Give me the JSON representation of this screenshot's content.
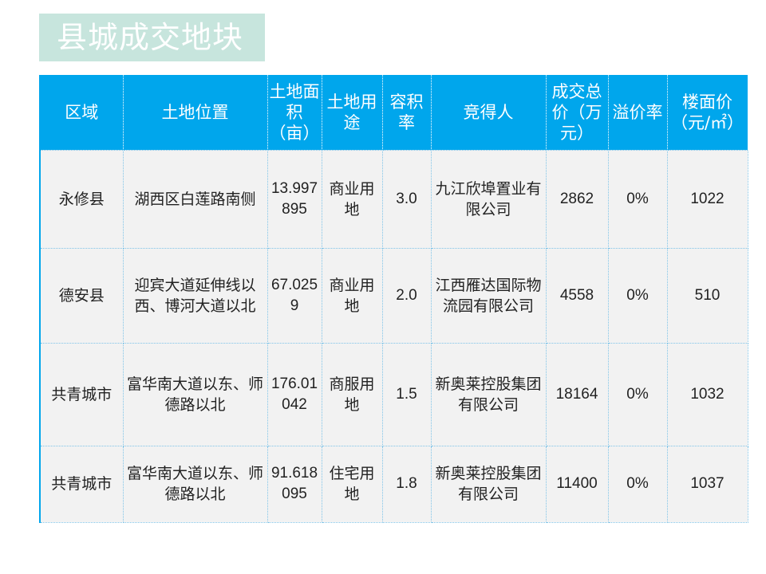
{
  "title": "县城成交地块",
  "table": {
    "headers": [
      "区域",
      "土地位置",
      "土地面积（亩）",
      "土地用途",
      "容积率",
      "竞得人",
      "成交总价（万元）",
      "溢价率",
      "楼面价（元/㎡）"
    ],
    "rows": [
      {
        "region": "永修县",
        "location": "湖西区白莲路南侧",
        "area": "13.997895",
        "usage": "商业用地",
        "far": "3.0",
        "winner": "九江欣埠置业有限公司",
        "total_price": "2862",
        "premium": "0%",
        "floor_price": "1022"
      },
      {
        "region": "德安县",
        "location": "迎宾大道延伸线以西、博河大道以北",
        "area": "67.0259",
        "usage": "商业用地",
        "far": "2.0",
        "winner": "江西雁达国际物流园有限公司",
        "total_price": "4558",
        "premium": "0%",
        "floor_price": "510"
      },
      {
        "region": "共青城市",
        "location": "富华南大道以东、师德路以北",
        "area": "176.01042",
        "usage": "商服用地",
        "far": "1.5",
        "winner": "新奥莱控股集团有限公司",
        "total_price": "18164",
        "premium": "0%",
        "floor_price": "1032"
      },
      {
        "region": "共青城市",
        "location": "富华南大道以东、师德路以北",
        "area": "91.618095",
        "usage": "住宅用地",
        "far": "1.8",
        "winner": "新奥莱控股集团有限公司",
        "total_price": "11400",
        "premium": "0%",
        "floor_price": "1037"
      }
    ]
  }
}
